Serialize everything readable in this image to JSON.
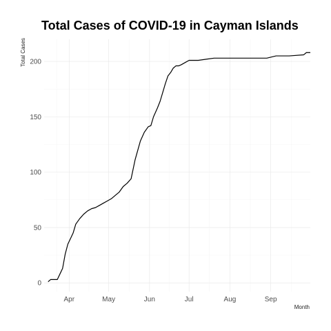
{
  "chart_data": {
    "type": "line",
    "title": "Total Cases of COVID-19 in Cayman Islands",
    "xlabel": "Month",
    "ylabel": "Total Cases",
    "x_type": "date",
    "xlim": [
      "2020-03-13",
      "2020-10-01"
    ],
    "ylim": [
      -8,
      220
    ],
    "x_ticks": [
      {
        "label": "Apr",
        "date": "2020-04-01"
      },
      {
        "label": "May",
        "date": "2020-05-01"
      },
      {
        "label": "Jun",
        "date": "2020-06-01"
      },
      {
        "label": "Jul",
        "date": "2020-07-01"
      },
      {
        "label": "Aug",
        "date": "2020-08-01"
      },
      {
        "label": "Sep",
        "date": "2020-09-01"
      }
    ],
    "y_ticks": [
      0,
      50,
      100,
      150,
      200
    ],
    "grid": true,
    "line_color": "#000000",
    "series": [
      {
        "x": [
          "2020-03-16",
          "2020-03-18",
          "2020-03-23",
          "2020-03-25",
          "2020-03-27",
          "2020-03-29",
          "2020-03-31",
          "2020-04-02",
          "2020-04-04",
          "2020-04-06",
          "2020-04-09",
          "2020-04-12",
          "2020-04-15",
          "2020-04-18",
          "2020-04-21",
          "2020-04-24",
          "2020-04-27",
          "2020-04-30",
          "2020-05-03",
          "2020-05-06",
          "2020-05-09",
          "2020-05-12",
          "2020-05-15",
          "2020-05-18",
          "2020-05-21",
          "2020-05-25",
          "2020-05-28",
          "2020-05-31",
          "2020-06-02",
          "2020-06-04",
          "2020-06-07",
          "2020-06-09",
          "2020-06-11",
          "2020-06-13",
          "2020-06-15",
          "2020-06-17",
          "2020-06-19",
          "2020-06-21",
          "2020-06-23",
          "2020-06-25",
          "2020-06-28",
          "2020-07-01",
          "2020-07-04",
          "2020-07-08",
          "2020-07-14",
          "2020-07-20",
          "2020-07-31",
          "2020-08-15",
          "2020-08-29",
          "2020-09-05",
          "2020-09-15",
          "2020-09-26",
          "2020-09-28",
          "2020-10-01"
        ],
        "values": [
          1,
          3,
          3,
          8,
          13,
          26,
          35,
          40,
          45,
          53,
          58,
          62,
          65,
          67,
          68,
          70,
          72,
          74,
          76,
          79,
          82,
          87,
          90,
          94,
          111,
          128,
          136,
          141,
          142,
          150,
          158,
          164,
          172,
          180,
          187,
          190,
          194,
          196,
          196,
          197,
          199,
          201,
          201,
          201,
          202,
          203,
          203,
          203,
          203,
          205,
          205,
          206,
          208,
          208
        ]
      }
    ]
  }
}
